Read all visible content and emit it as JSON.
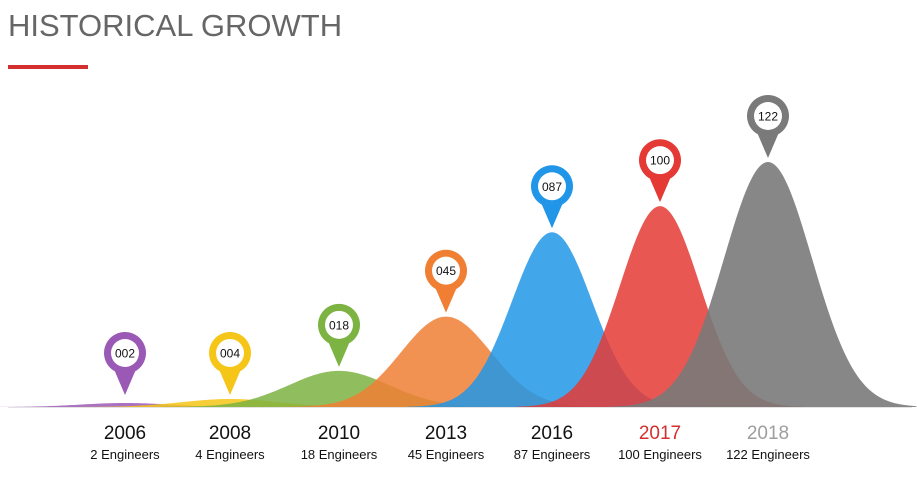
{
  "header": {
    "title": "HISTORICAL GROWTH",
    "accent": "#d32f2f"
  },
  "chart_data": {
    "type": "area",
    "categories": [
      "2006",
      "2008",
      "2010",
      "2013",
      "2016",
      "2017",
      "2018"
    ],
    "values": [
      2,
      4,
      18,
      45,
      87,
      100,
      122
    ],
    "marker_labels": [
      "002",
      "004",
      "018",
      "045",
      "087",
      "100",
      "122"
    ],
    "sublabels": [
      "2 Engineers",
      "4 Engineers",
      "18 Engineers",
      "45 Engineers",
      "87 Engineers",
      "100 Engineers",
      "122 Engineers"
    ],
    "colors": [
      "#9b59b6",
      "#f5c518",
      "#7cb342",
      "#f07f34",
      "#2196e8",
      "#e53935",
      "#7a7a7a"
    ],
    "label_colors": [
      "#111111",
      "#111111",
      "#111111",
      "#111111",
      "#111111",
      "#d32f2f",
      "#9e9e9e"
    ],
    "ylim": [
      0,
      122
    ],
    "grid": false,
    "legend": "none"
  }
}
